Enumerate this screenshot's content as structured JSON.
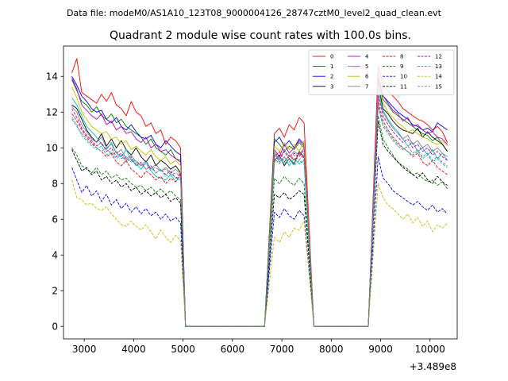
{
  "chart_data": {
    "type": "line",
    "suptitle": "Data file: modeM0/AS1A10_123T08_9000004126_28747cztM0_level2_quad_clean.evt",
    "title": "Quadrant 2 module wise count rates with 100.0s bins.",
    "xlabel": "",
    "ylabel": "",
    "x_offset_label": "+3.489e8",
    "xlim": [
      2580,
      10550
    ],
    "ylim": [
      -0.7,
      15.7
    ],
    "x_ticks": [
      3000,
      4000,
      5000,
      6000,
      7000,
      8000,
      9000,
      10000
    ],
    "y_ticks": [
      0,
      2,
      4,
      6,
      8,
      10,
      12,
      14
    ],
    "legend_position": "top-right",
    "legend_columns": 4,
    "segments": [
      {
        "x_start": 2750,
        "x_end": 4950,
        "n": 23
      },
      {
        "x_start": 6850,
        "x_end": 7450,
        "n": 7
      },
      {
        "x_start": 8950,
        "x_end": 10350,
        "n": 15
      }
    ],
    "gap_points": [
      5050,
      5150,
      5250,
      5350,
      5450,
      5550,
      5650,
      5750,
      5850,
      5950,
      6050,
      6150,
      6250,
      6350,
      6450,
      6550,
      6650,
      7650,
      7750,
      7850,
      7950,
      8050,
      8150,
      8250,
      8350,
      8450,
      8550,
      8650,
      8750
    ],
    "series": [
      {
        "name": "0",
        "color": "#ff0000",
        "dash": false,
        "seg1": [
          14.2,
          15.0,
          13.1,
          12.9,
          12.7,
          12.5,
          13.0,
          12.6,
          13.1,
          12.4,
          12.2,
          11.8,
          12.6,
          12.0,
          11.8,
          11.2,
          11.4,
          10.8,
          11.0,
          10.2,
          10.6,
          10.4,
          10.0
        ],
        "seg2": [
          10.8,
          11.1,
          10.6,
          11.3,
          11.0,
          11.7,
          11.4
        ],
        "seg3": [
          14.6,
          13.5,
          13.2,
          12.9,
          12.6,
          12.2,
          12.0,
          11.8,
          11.6,
          11.5,
          11.3,
          11.0,
          11.2,
          10.9,
          10.3
        ]
      },
      {
        "name": "1",
        "color": "#008000",
        "dash": false,
        "seg1": [
          13.8,
          13.2,
          12.6,
          12.4,
          12.0,
          12.3,
          11.8,
          11.6,
          11.9,
          11.4,
          11.6,
          11.2,
          11.0,
          10.8,
          10.6,
          10.2,
          10.5,
          10.0,
          9.8,
          9.6,
          9.9,
          9.4,
          9.3
        ],
        "seg2": [
          10.5,
          10.2,
          9.8,
          10.1,
          9.9,
          10.3,
          10.0
        ],
        "seg3": [
          13.7,
          12.7,
          12.4,
          12.0,
          11.8,
          11.6,
          11.4,
          11.2,
          11.0,
          10.8,
          10.7,
          10.4,
          10.6,
          10.2,
          9.8
        ]
      },
      {
        "name": "2",
        "color": "#0000ff",
        "dash": false,
        "seg1": [
          14.0,
          13.5,
          12.9,
          12.6,
          12.2,
          12.0,
          12.1,
          11.6,
          11.4,
          11.7,
          11.2,
          11.0,
          11.3,
          10.9,
          10.6,
          10.5,
          10.7,
          10.2,
          10.0,
          10.4,
          10.1,
          9.8,
          9.6
        ],
        "seg2": [
          10.3,
          10.6,
          10.1,
          10.4,
          10.0,
          10.5,
          10.2
        ],
        "seg3": [
          13.9,
          12.9,
          12.6,
          12.3,
          12.0,
          11.8,
          11.6,
          11.3,
          11.2,
          11.0,
          11.1,
          10.9,
          11.4,
          11.2,
          11.0
        ]
      },
      {
        "name": "3",
        "color": "#000000",
        "dash": false,
        "seg1": [
          12.4,
          12.2,
          11.6,
          11.0,
          10.6,
          10.3,
          10.8,
          10.1,
          10.5,
          10.0,
          10.4,
          9.9,
          9.6,
          10.0,
          9.5,
          9.2,
          9.6,
          9.0,
          9.3,
          9.1,
          8.8,
          9.0,
          8.6
        ],
        "seg2": [
          9.3,
          9.6,
          9.0,
          9.4,
          9.1,
          9.8,
          9.5
        ],
        "seg3": [
          13.6,
          12.2,
          11.9,
          11.5,
          11.2,
          11.0,
          10.9,
          10.8,
          11.1,
          10.6,
          10.9,
          10.6,
          10.4,
          10.2,
          9.8
        ]
      },
      {
        "name": "4",
        "color": "#bf00bf",
        "dash": false,
        "seg1": [
          13.9,
          13.3,
          12.4,
          12.1,
          11.8,
          11.6,
          11.9,
          11.3,
          11.5,
          11.0,
          11.2,
          10.8,
          10.9,
          10.5,
          10.3,
          10.6,
          10.0,
          10.2,
          9.8,
          9.9,
          9.6,
          9.4,
          9.2
        ],
        "seg2": [
          9.9,
          9.5,
          10.2,
          9.7,
          10.0,
          10.4,
          10.1
        ],
        "seg3": [
          14.2,
          12.9,
          12.5,
          12.1,
          11.9,
          11.5,
          11.7,
          11.2,
          11.3,
          11.0,
          10.8,
          10.9,
          10.6,
          10.5,
          10.2
        ]
      },
      {
        "name": "5",
        "color": "#00bfbf",
        "dash": false,
        "seg1": [
          12.8,
          12.4,
          11.8,
          11.2,
          10.9,
          10.6,
          10.2,
          9.9,
          10.3,
          9.7,
          9.5,
          9.9,
          9.3,
          9.1,
          8.8,
          9.2,
          8.7,
          8.4,
          8.3,
          8.2,
          8.5,
          8.1,
          8.4
        ],
        "seg2": [
          9.8,
          9.2,
          9.5,
          9.0,
          9.4,
          9.1,
          9.3
        ],
        "seg3": [
          13.3,
          12.1,
          11.6,
          11.2,
          10.9,
          10.5,
          10.1,
          10.3,
          9.8,
          10.0,
          9.6,
          9.9,
          9.4,
          9.7,
          9.3
        ]
      },
      {
        "name": "6",
        "color": "#bfbf00",
        "dash": false,
        "seg1": [
          13.4,
          12.8,
          12.0,
          11.6,
          11.2,
          11.0,
          10.8,
          10.9,
          10.5,
          10.6,
          10.2,
          10.4,
          9.9,
          10.1,
          9.8,
          9.6,
          9.9,
          9.5,
          9.3,
          9.5,
          9.1,
          9.3,
          9.0
        ],
        "seg2": [
          10.1,
          9.8,
          10.3,
          9.9,
          10.2,
          9.8,
          10.4
        ],
        "seg3": [
          13.5,
          12.5,
          12.0,
          11.7,
          11.4,
          11.2,
          10.9,
          11.0,
          10.8,
          10.6,
          10.5,
          10.3,
          10.2,
          10.4,
          10.1
        ]
      },
      {
        "name": "7",
        "color": "#808080",
        "dash": false,
        "seg1": [
          12.3,
          12.0,
          11.3,
          10.9,
          10.5,
          10.3,
          10.6,
          10.0,
          10.2,
          9.7,
          9.9,
          9.4,
          9.6,
          9.2,
          9.0,
          9.3,
          8.8,
          9.1,
          8.7,
          8.9,
          8.6,
          8.8,
          8.5
        ],
        "seg2": [
          9.7,
          9.4,
          9.9,
          9.5,
          9.8,
          9.6,
          10.0
        ],
        "seg3": [
          13.0,
          12.0,
          11.5,
          11.1,
          10.8,
          10.5,
          10.7,
          10.2,
          10.4,
          10.0,
          10.2,
          9.8,
          10.0,
          9.7,
          9.5
        ]
      },
      {
        "name": "8",
        "color": "#ff0000",
        "dash": true,
        "seg1": [
          11.9,
          11.5,
          11.0,
          10.6,
          10.3,
          10.0,
          9.8,
          9.5,
          9.7,
          9.2,
          9.0,
          9.3,
          8.8,
          8.6,
          8.3,
          8.7,
          8.5,
          8.2,
          8.4,
          8.0,
          8.3,
          8.1,
          8.6
        ],
        "seg2": [
          9.5,
          9.8,
          9.2,
          9.6,
          9.3,
          9.7,
          9.4
        ],
        "seg3": [
          12.6,
          11.5,
          11.0,
          10.6,
          10.3,
          10.0,
          9.8,
          9.5,
          9.7,
          9.2,
          9.0,
          9.3,
          8.9,
          8.7,
          8.5
        ]
      },
      {
        "name": "9",
        "color": "#008000",
        "dash": true,
        "seg1": [
          10.0,
          9.6,
          9.0,
          8.8,
          8.6,
          8.9,
          8.5,
          8.7,
          8.3,
          8.5,
          8.2,
          8.3,
          8.0,
          7.8,
          7.9,
          7.6,
          7.8,
          7.5,
          7.7,
          7.4,
          7.6,
          7.3,
          7.1
        ],
        "seg2": [
          8.3,
          8.0,
          8.4,
          8.1,
          7.9,
          8.3,
          8.0
        ],
        "seg3": [
          11.8,
          10.5,
          10.0,
          9.6,
          9.2,
          9.0,
          8.8,
          8.5,
          8.6,
          8.3,
          8.1,
          8.2,
          7.9,
          8.1,
          7.7
        ]
      },
      {
        "name": "10",
        "color": "#0000ff",
        "dash": true,
        "seg1": [
          8.9,
          8.2,
          7.5,
          7.9,
          7.3,
          7.6,
          7.0,
          7.4,
          6.8,
          7.1,
          6.6,
          6.9,
          6.4,
          6.7,
          6.3,
          6.6,
          6.2,
          6.4,
          6.0,
          6.3,
          5.9,
          6.1,
          5.8
        ],
        "seg2": [
          6.4,
          6.1,
          6.6,
          6.2,
          6.0,
          6.5,
          6.2
        ],
        "seg3": [
          9.5,
          8.3,
          8.0,
          7.6,
          7.4,
          7.2,
          7.0,
          6.8,
          7.0,
          6.7,
          6.5,
          6.8,
          6.4,
          6.6,
          6.3
        ]
      },
      {
        "name": "11",
        "color": "#000000",
        "dash": true,
        "seg1": [
          9.9,
          9.3,
          8.7,
          8.9,
          8.5,
          8.7,
          8.2,
          8.4,
          8.0,
          8.2,
          7.8,
          8.0,
          7.6,
          7.8,
          7.4,
          7.6,
          7.3,
          7.5,
          7.2,
          7.4,
          7.0,
          7.2,
          6.9
        ],
        "seg2": [
          7.4,
          7.2,
          7.5,
          7.1,
          7.3,
          7.6,
          7.4
        ],
        "seg3": [
          11.5,
          10.2,
          9.8,
          9.5,
          9.2,
          8.9,
          8.7,
          8.5,
          8.3,
          8.6,
          8.2,
          8.0,
          8.4,
          8.1,
          7.9
        ]
      },
      {
        "name": "12",
        "color": "#bf00bf",
        "dash": true,
        "seg1": [
          12.2,
          11.7,
          11.1,
          10.7,
          10.4,
          10.1,
          10.3,
          9.8,
          10.0,
          9.5,
          9.7,
          9.3,
          9.5,
          9.0,
          9.2,
          8.8,
          9.0,
          8.6,
          8.8,
          8.5,
          8.7,
          8.3,
          8.5
        ],
        "seg2": [
          9.6,
          9.3,
          9.8,
          9.4,
          9.7,
          9.5,
          9.9
        ],
        "seg3": [
          12.9,
          11.8,
          11.3,
          10.9,
          10.6,
          10.3,
          10.5,
          10.0,
          10.2,
          9.8,
          10.0,
          9.6,
          9.8,
          9.5,
          9.3
        ]
      },
      {
        "name": "13",
        "color": "#00bfbf",
        "dash": true,
        "seg1": [
          11.7,
          11.3,
          10.7,
          10.4,
          10.1,
          9.9,
          10.1,
          9.6,
          9.8,
          9.4,
          9.6,
          9.2,
          9.4,
          9.0,
          9.1,
          8.8,
          8.9,
          8.6,
          8.8,
          8.4,
          8.6,
          8.3,
          8.2
        ],
        "seg2": [
          9.2,
          9.5,
          9.1,
          9.4,
          9.0,
          9.3,
          9.1
        ],
        "seg3": [
          12.4,
          11.3,
          10.9,
          10.5,
          10.2,
          10.0,
          9.8,
          9.6,
          9.8,
          9.4,
          9.6,
          9.2,
          9.4,
          9.1,
          8.9
        ]
      },
      {
        "name": "14",
        "color": "#bfbf00",
        "dash": true,
        "seg1": [
          8.2,
          7.2,
          7.1,
          6.8,
          6.9,
          6.6,
          6.5,
          6.7,
          6.3,
          6.0,
          5.7,
          5.6,
          5.9,
          5.6,
          5.4,
          5.7,
          5.3,
          4.9,
          5.4,
          5.0,
          4.7,
          5.1,
          4.8
        ],
        "seg2": [
          5.0,
          4.7,
          5.3,
          5.0,
          5.5,
          5.4,
          5.9
        ],
        "seg3": [
          8.0,
          7.2,
          6.8,
          6.6,
          6.3,
          6.0,
          6.3,
          5.8,
          6.1,
          5.6,
          5.9,
          5.3,
          5.7,
          5.5,
          5.8
        ]
      },
      {
        "name": "15",
        "color": "#808080",
        "dash": true,
        "seg1": [
          11.6,
          11.2,
          10.8,
          10.5,
          10.2,
          10.0,
          9.8,
          10.0,
          9.6,
          9.8,
          9.4,
          9.5,
          9.2,
          9.3,
          9.0,
          9.1,
          8.8,
          8.9,
          8.7,
          8.8,
          8.5,
          8.6,
          8.4
        ],
        "seg2": [
          9.4,
          9.1,
          9.5,
          9.2,
          9.6,
          9.3,
          9.7
        ],
        "seg3": [
          12.3,
          11.2,
          10.8,
          10.4,
          10.1,
          9.9,
          10.1,
          9.7,
          9.9,
          9.5,
          9.7,
          9.3,
          9.5,
          9.2,
          9.0
        ]
      }
    ]
  }
}
